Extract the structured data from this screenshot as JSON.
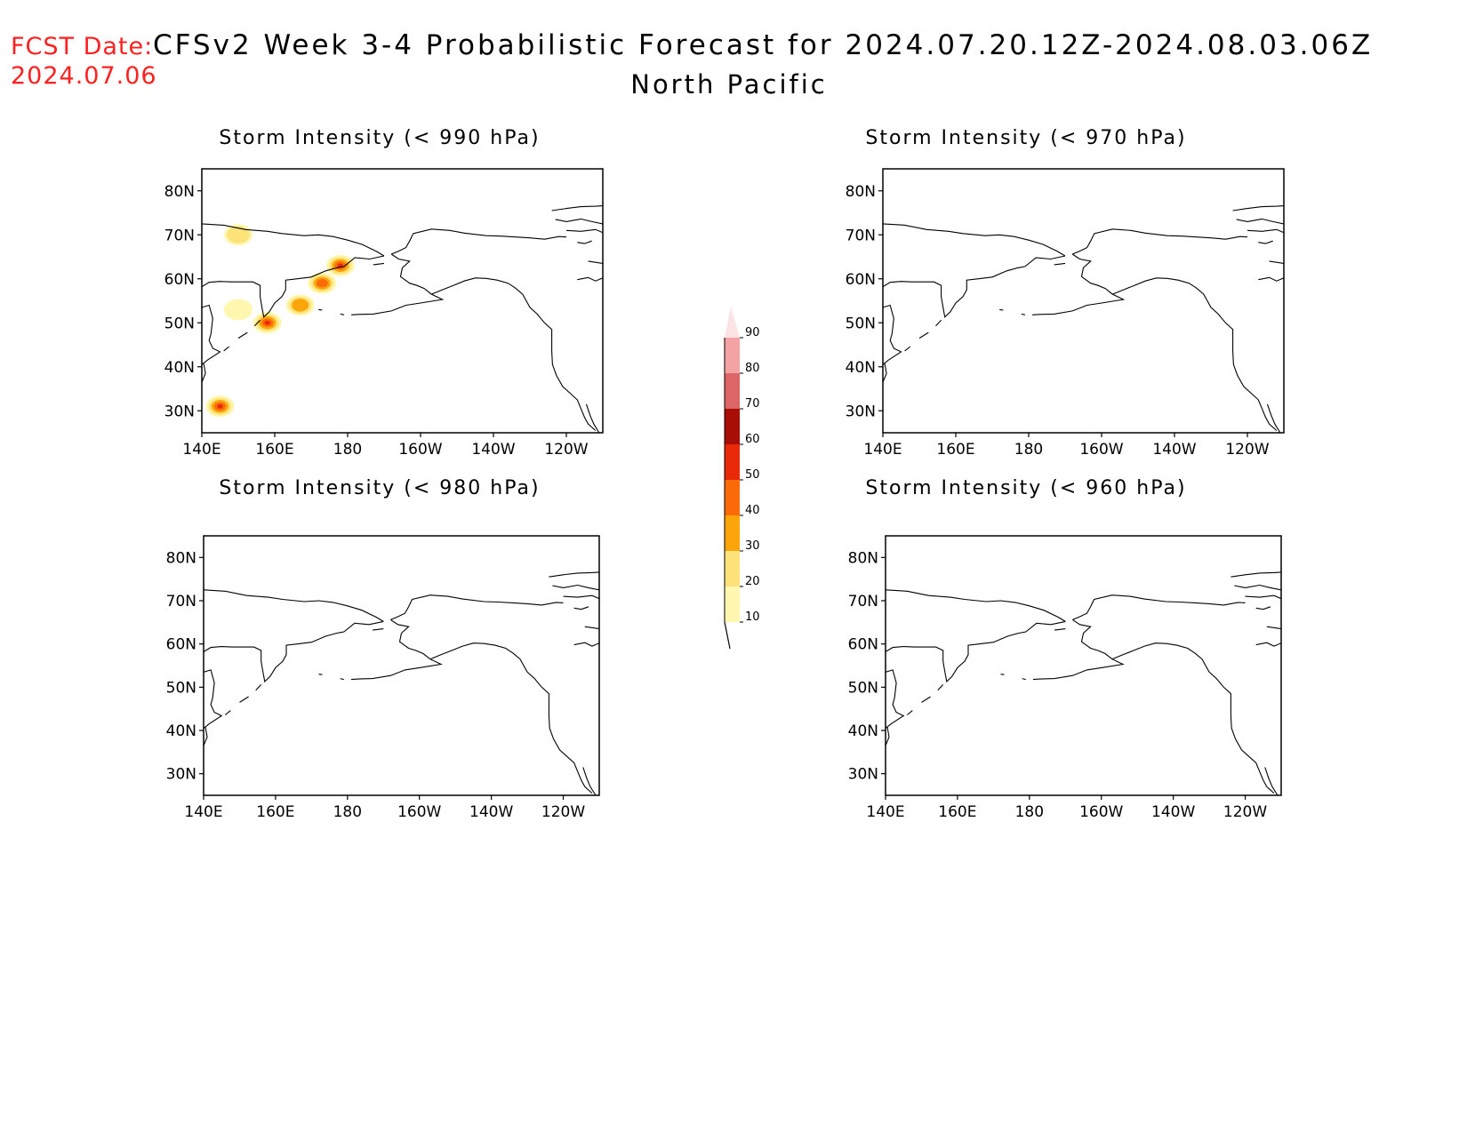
{
  "header": {
    "fcst_label": "FCST Date:",
    "fcst_date": "2024.07.06",
    "title": "CFSv2 Week 3-4 Probabilistic Forecast for 2024.07.20.12Z-2024.08.03.06Z",
    "region": "North Pacific"
  },
  "axes": {
    "lat_labels": [
      "80N",
      "70N",
      "60N",
      "50N",
      "40N",
      "30N"
    ],
    "lon_labels": [
      "140E",
      "160E",
      "180",
      "160W",
      "140W",
      "120W"
    ]
  },
  "panels": [
    {
      "title": "Storm Intensity (< 990 hPa)",
      "threshold_hPa": 990,
      "probability_areas": [
        {
          "lon": 150,
          "lat": 70,
          "level": "20-30"
        },
        {
          "lon": 150,
          "lat": 53,
          "level": "10-20"
        },
        {
          "lon": 145,
          "lat": 31,
          "level": "50-60"
        },
        {
          "lon": 158,
          "lat": 50,
          "level": "50-60"
        },
        {
          "lon": 167,
          "lat": 54,
          "level": "30-40"
        },
        {
          "lon": 173,
          "lat": 59,
          "level": "40-50"
        },
        {
          "lon": 178,
          "lat": 63,
          "level": "50-60"
        }
      ]
    },
    {
      "title": "Storm Intensity (< 970 hPa)",
      "threshold_hPa": 970,
      "probability_areas": []
    },
    {
      "title": "Storm Intensity (< 980 hPa)",
      "threshold_hPa": 980,
      "probability_areas": []
    },
    {
      "title": "Storm Intensity (< 960 hPa)",
      "threshold_hPa": 960,
      "probability_areas": []
    }
  ],
  "legend": {
    "levels": [
      "10",
      "20",
      "30",
      "40",
      "50",
      "60",
      "70",
      "80",
      "90"
    ],
    "colors": [
      "#fff7b0",
      "#fde27a",
      "#fca50a",
      "#fb6a08",
      "#e82a0a",
      "#a80d06",
      "#de6565",
      "#f3a3a3",
      "#fde4e4"
    ]
  }
}
